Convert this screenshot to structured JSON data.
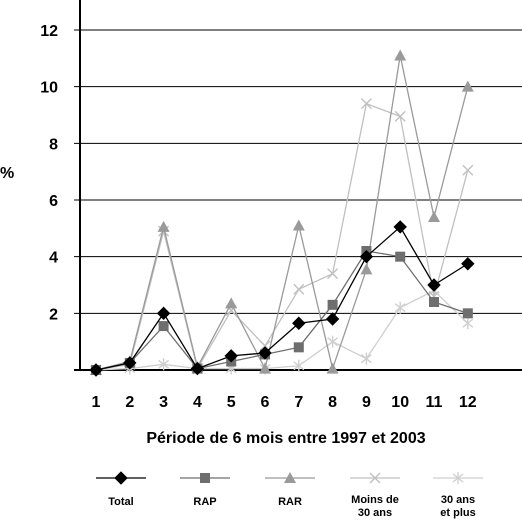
{
  "chart_data": {
    "type": "line",
    "title": "",
    "xlabel": "Période de 6 mois entre 1997 et 2003",
    "ylabel": "%",
    "x": [
      1,
      2,
      3,
      4,
      5,
      6,
      7,
      8,
      9,
      10,
      11,
      12
    ],
    "xlim": [
      0.5,
      12.5
    ],
    "ylim": [
      0,
      12
    ],
    "yticks": [
      2,
      4,
      6,
      8,
      10,
      12
    ],
    "grid": "horizontal",
    "legend_position": "bottom",
    "series": [
      {
        "name": "Total",
        "marker": "diamond",
        "color": "#000000",
        "values": [
          0,
          0.25,
          2.0,
          0.05,
          0.5,
          0.6,
          1.65,
          1.8,
          4.0,
          5.05,
          3.0,
          3.75
        ]
      },
      {
        "name": "RAP",
        "marker": "square",
        "color": "#6e6e6e",
        "values": [
          0,
          0.25,
          1.55,
          0.05,
          0.3,
          0.55,
          0.8,
          2.3,
          4.2,
          4.0,
          2.4,
          2.0
        ]
      },
      {
        "name": "RAR",
        "marker": "triangle",
        "color": "#9a9a9a",
        "values": [
          0,
          0.3,
          5.05,
          0.1,
          2.35,
          0.05,
          5.1,
          0.05,
          3.55,
          11.1,
          5.4,
          10.0
        ]
      },
      {
        "name": "Moins de 30 ans",
        "marker": "x",
        "color": "#c0c0c0",
        "values": [
          0,
          0.2,
          4.9,
          0.05,
          2.1,
          0.85,
          2.85,
          3.4,
          9.4,
          8.95,
          2.6,
          7.05
        ]
      },
      {
        "name": "30 ans et plus",
        "marker": "asterisk",
        "color": "#cfcfcf",
        "values": [
          0,
          0.05,
          0.2,
          0.05,
          0.05,
          0.05,
          0.15,
          1.0,
          0.4,
          2.2,
          2.8,
          1.65
        ]
      }
    ]
  },
  "legend": {
    "total": "Total",
    "rap": "RAP",
    "rar": "RAR",
    "moins_line1": "Moins de",
    "moins_line2": "30 ans",
    "plus_line1": "30 ans",
    "plus_line2": "et plus"
  }
}
